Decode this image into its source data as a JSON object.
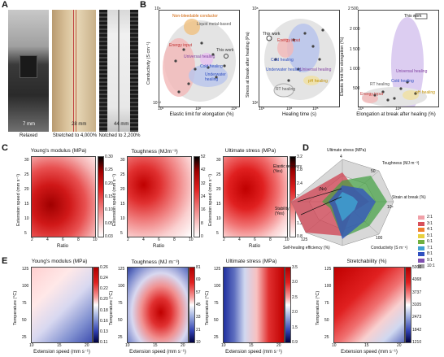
{
  "panels": {
    "a": "A",
    "b": "B",
    "c": "C",
    "d": "D",
    "e": "E"
  },
  "panelA": {
    "captions": [
      "Relaxed",
      "Stretched to 4,000%",
      "Notched to 2,200%"
    ],
    "scales": [
      "7 mm",
      "28 mm",
      "44 mm"
    ]
  },
  "panelB": {
    "b1": {
      "xlabel": "Elastic limit for elongation (%)",
      "ylabel": "Conductivity (S cm⁻¹)",
      "labels": [
        "Non-bleedable conductor",
        "Liquid metal-based",
        "Energy input",
        "Universal healing",
        "This work",
        "Cold healing",
        "Underwater healing"
      ]
    },
    "b2": {
      "xlabel": "Healing time (s)",
      "ylabel": "Stress at break after healing (Pa)",
      "labels": [
        "This work",
        "Energy input",
        "Cold healing",
        "Underwater healing",
        "Universal healing",
        "pH healing",
        "RT healing"
      ]
    },
    "b3": {
      "xlabel": "Elongation at break after healing (%)",
      "ylabel": "Elastic limit for elongation (%)",
      "labels": [
        "This work",
        "Universal healing",
        "Cold healing",
        "RT healing",
        "Energy input",
        "pH healing"
      ]
    }
  },
  "panelC": [
    {
      "title": "Young's modulus (MPa)",
      "ylabel": "Extension speed (mm s⁻¹)",
      "xlabel": "Ratio",
      "ticks": [
        "0.30",
        "0.25",
        "0.20",
        "0.15",
        "0.10",
        "0.05",
        "0.03"
      ]
    },
    {
      "title": "Toughness (MJm⁻³)",
      "ylabel": "Extension speed (mm s⁻¹)",
      "xlabel": "Ratio",
      "ticks": [
        "52",
        "42",
        "32",
        "24",
        "16",
        "8",
        "0"
      ]
    },
    {
      "title": "Ultimate stress (MPa)",
      "ylabel": "Extension speed (mm s⁻¹)",
      "xlabel": "Ratio",
      "ticks": [
        "3.2",
        "2.8",
        "2.4",
        "2.0",
        "1.6",
        "1.2",
        "0.8"
      ]
    }
  ],
  "panelCAxis": {
    "yticks": [
      "30",
      "25",
      "20",
      "15",
      "10",
      "5"
    ],
    "xticks": [
      "2",
      "4",
      "6",
      "8",
      "10"
    ]
  },
  "panelD": {
    "axes": [
      "Ultimate stress (MPa)",
      "Toughness (MJ m⁻³)",
      "Strain at break (%)",
      "Conductivity (S m⁻¹)",
      "Self-healing efficiency (%)",
      "Stability (Yes)",
      "Elastic recovery (Yes)"
    ],
    "values": [
      "4",
      "50",
      "10⁴",
      "100",
      "125",
      "(No)"
    ],
    "legend": [
      "2:1",
      "3:1",
      "4:1",
      "5:1",
      "6:1",
      "7:1",
      "8:1",
      "9:1",
      "10:1"
    ],
    "legend_colors": [
      "#f0a0a8",
      "#d8505a",
      "#f08030",
      "#e8d040",
      "#70b040",
      "#40a0d0",
      "#3050c0",
      "#8050b0",
      "#a0a0a0"
    ]
  },
  "panelE": [
    {
      "title": "Young's modulus (MPa)",
      "ticks": [
        "0.26",
        "0.24",
        "0.22",
        "0.20",
        "0.18",
        "0.16",
        "0.13",
        "0.11"
      ]
    },
    {
      "title": "Toughness (MJ m⁻³)",
      "ticks": [
        "81",
        "69",
        "57",
        "45",
        "33",
        "21",
        "10"
      ]
    },
    {
      "title": "Ultimate stress (MPa)",
      "ticks": [
        "3.5",
        "3.0",
        "2.5",
        "2.0",
        "1.5",
        "0.9"
      ]
    },
    {
      "title": "Stretchability (%)",
      "ticks": [
        "5000",
        "4368",
        "3737",
        "3105",
        "2473",
        "1842",
        "1210"
      ]
    }
  ],
  "panelEAxis": {
    "ylabel": "Temperature (°C)",
    "xlabel": "Extension speed (mm s⁻¹)",
    "yticks": [
      "125",
      "100",
      "75",
      "50",
      "25"
    ],
    "xticks": [
      "10",
      "15",
      "20"
    ]
  }
}
